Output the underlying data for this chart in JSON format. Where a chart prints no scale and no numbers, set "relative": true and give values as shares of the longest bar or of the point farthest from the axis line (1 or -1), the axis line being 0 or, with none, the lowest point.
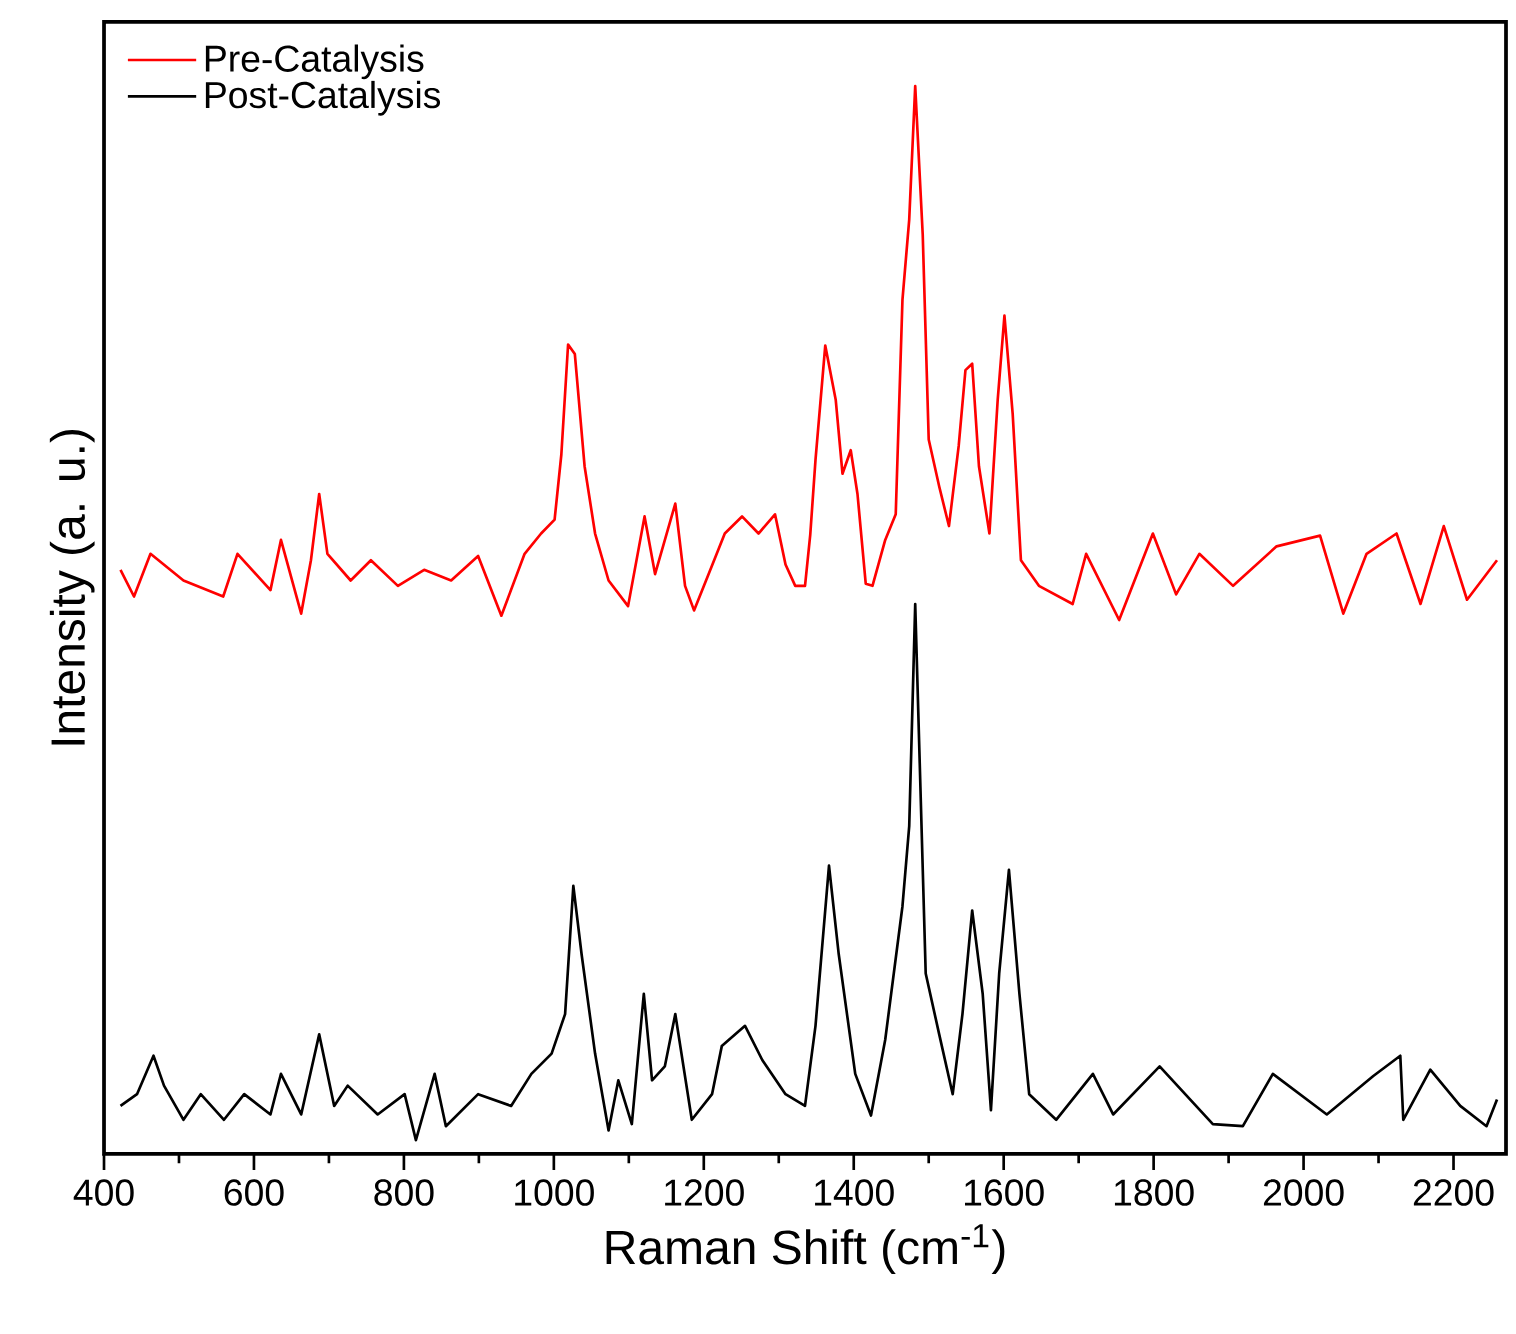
{
  "chart_data": {
    "type": "line",
    "relative": true,
    "xlabel": "Raman Shift (cm$^{-1}$)",
    "ylabel": "Intensity (a. u.)",
    "xlim": [
      400,
      2270
    ],
    "xticks": [
      400,
      600,
      800,
      1000,
      1200,
      1400,
      1600,
      1800,
      2000,
      2200
    ],
    "legend": "top left",
    "series": [
      {
        "name": "Pre-Catalysis",
        "color": "#ff0000",
        "x": [
          422,
          440,
          462,
          506,
          559,
          578,
          622,
          636,
          663,
          676,
          687,
          698,
          729,
          756,
          792,
          827,
          863,
          899,
          930,
          961,
          983,
          1001,
          1010,
          1019,
          1028,
          1041,
          1055,
          1073,
          1099,
          1121,
          1135,
          1162,
          1175,
          1187,
          1211,
          1228,
          1251,
          1273,
          1295,
          1309,
          1322,
          1335,
          1342,
          1349,
          1362,
          1376,
          1385,
          1396,
          1405,
          1416,
          1425,
          1442,
          1456,
          1465,
          1474,
          1482,
          1492,
          1500,
          1514,
          1527,
          1540,
          1549,
          1558,
          1567,
          1581,
          1592,
          1601,
          1612,
          1623,
          1647,
          1692,
          1710,
          1754,
          1799,
          1830,
          1861,
          1906,
          1964,
          2022,
          2053,
          2084,
          2124,
          2156,
          2187,
          2218,
          2258
        ],
        "values": [
          0.547,
          0.522,
          0.562,
          0.537,
          0.522,
          0.562,
          0.528,
          0.575,
          0.506,
          0.556,
          0.618,
          0.562,
          0.537,
          0.556,
          0.532,
          0.547,
          0.537,
          0.56,
          0.504,
          0.562,
          0.581,
          0.594,
          0.655,
          0.758,
          0.749,
          0.644,
          0.581,
          0.537,
          0.513,
          0.597,
          0.543,
          0.609,
          0.532,
          0.509,
          0.551,
          0.581,
          0.597,
          0.581,
          0.599,
          0.552,
          0.532,
          0.532,
          0.58,
          0.65,
          0.757,
          0.706,
          0.637,
          0.659,
          0.618,
          0.534,
          0.532,
          0.575,
          0.599,
          0.8,
          0.875,
          1.0,
          0.861,
          0.669,
          0.625,
          0.588,
          0.663,
          0.734,
          0.74,
          0.644,
          0.581,
          0.706,
          0.785,
          0.693,
          0.556,
          0.532,
          0.515,
          0.562,
          0.5,
          0.581,
          0.524,
          0.562,
          0.532,
          0.569,
          0.579,
          0.506,
          0.562,
          0.581,
          0.515,
          0.588,
          0.519,
          0.556
        ]
      },
      {
        "name": "Post-Catalysis",
        "color": "#000000",
        "x": [
          422,
          444,
          466,
          480,
          506,
          529,
          560,
          587,
          622,
          636,
          663,
          687,
          707,
          725,
          765,
          801,
          816,
          841,
          856,
          899,
          943,
          970,
          997,
          1015,
          1026,
          1037,
          1055,
          1073,
          1086,
          1104,
          1120,
          1131,
          1148,
          1162,
          1184,
          1211,
          1224,
          1255,
          1278,
          1309,
          1335,
          1349,
          1367,
          1380,
          1402,
          1423,
          1442,
          1465,
          1474,
          1482,
          1496,
          1514,
          1532,
          1545,
          1558,
          1572,
          1583,
          1594,
          1607,
          1621,
          1634,
          1670,
          1719,
          1746,
          1808,
          1879,
          1919,
          1959,
          2031,
          2093,
          2129,
          2133,
          2169,
          2209,
          2244,
          2258
        ],
        "values": [
          0.045,
          0.056,
          0.092,
          0.064,
          0.032,
          0.056,
          0.032,
          0.056,
          0.037,
          0.075,
          0.037,
          0.112,
          0.045,
          0.064,
          0.037,
          0.056,
          0.013,
          0.075,
          0.026,
          0.056,
          0.045,
          0.075,
          0.094,
          0.131,
          0.251,
          0.187,
          0.094,
          0.022,
          0.069,
          0.028,
          0.15,
          0.069,
          0.082,
          0.131,
          0.032,
          0.056,
          0.101,
          0.12,
          0.088,
          0.056,
          0.045,
          0.12,
          0.27,
          0.187,
          0.075,
          0.036,
          0.107,
          0.232,
          0.307,
          0.515,
          0.169,
          0.112,
          0.056,
          0.131,
          0.228,
          0.15,
          0.041,
          0.169,
          0.266,
          0.15,
          0.056,
          0.032,
          0.075,
          0.037,
          0.082,
          0.028,
          0.026,
          0.075,
          0.037,
          0.073,
          0.092,
          0.032,
          0.079,
          0.045,
          0.026,
          0.051
        ]
      }
    ]
  }
}
